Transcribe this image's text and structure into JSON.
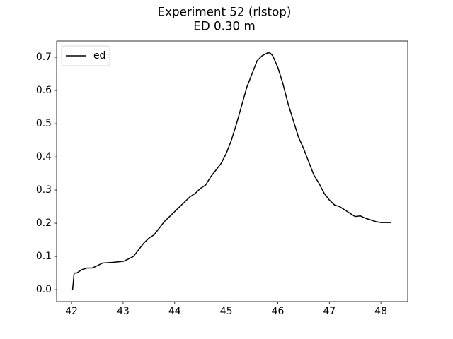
{
  "chart_data": {
    "type": "line",
    "title": "Experiment 52 (rlstop)",
    "subtitle": "ED 0.30 m",
    "x": [
      42.02,
      42.05,
      42.1,
      42.15,
      42.2,
      42.3,
      42.4,
      42.5,
      42.6,
      42.8,
      43.0,
      43.1,
      43.2,
      43.3,
      43.4,
      43.5,
      43.6,
      43.7,
      43.8,
      43.9,
      44.0,
      44.1,
      44.2,
      44.3,
      44.4,
      44.5,
      44.6,
      44.7,
      44.8,
      44.9,
      45.0,
      45.1,
      45.2,
      45.3,
      45.4,
      45.5,
      45.6,
      45.7,
      45.8,
      45.85,
      45.9,
      46.0,
      46.1,
      46.2,
      46.3,
      46.4,
      46.5,
      46.6,
      46.7,
      46.8,
      46.9,
      47.0,
      47.1,
      47.2,
      47.3,
      47.4,
      47.5,
      47.6,
      47.7,
      47.8,
      47.9,
      48.0,
      48.2
    ],
    "series": [
      {
        "name": "ed",
        "color": "#000000",
        "values": [
          0.0,
          0.05,
          0.05,
          0.055,
          0.06,
          0.065,
          0.065,
          0.072,
          0.08,
          0.082,
          0.085,
          0.092,
          0.1,
          0.12,
          0.14,
          0.155,
          0.165,
          0.185,
          0.205,
          0.22,
          0.235,
          0.25,
          0.265,
          0.28,
          0.29,
          0.305,
          0.315,
          0.34,
          0.36,
          0.38,
          0.41,
          0.45,
          0.5,
          0.555,
          0.61,
          0.65,
          0.69,
          0.705,
          0.713,
          0.713,
          0.705,
          0.67,
          0.62,
          0.56,
          0.51,
          0.46,
          0.425,
          0.385,
          0.345,
          0.32,
          0.29,
          0.27,
          0.255,
          0.25,
          0.24,
          0.23,
          0.22,
          0.222,
          0.215,
          0.21,
          0.205,
          0.202,
          0.202
        ]
      }
    ],
    "xlim": [
      41.71,
      48.52
    ],
    "ylim": [
      -0.036,
      0.749
    ],
    "xticks": [
      42,
      43,
      44,
      45,
      46,
      47,
      48
    ],
    "yticks": [
      {
        "value": 0,
        "label": "0.0"
      },
      0.1,
      0.2,
      0.3,
      0.4,
      0.5,
      0.6,
      0.7
    ],
    "legend": "upper left"
  }
}
